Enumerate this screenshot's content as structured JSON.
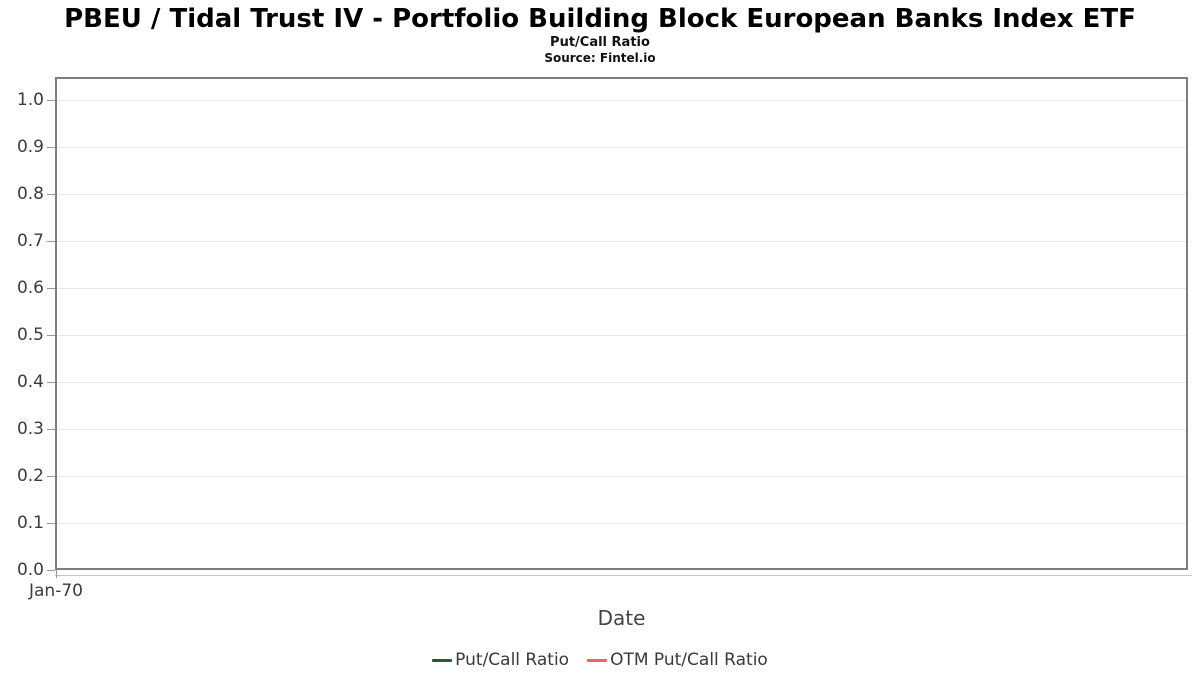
{
  "header": {
    "title": "PBEU / Tidal Trust IV - Portfolio Building Block European Banks Index ETF",
    "subtitle": "Put/Call Ratio",
    "source": "Source: Fintel.io"
  },
  "chart_data": {
    "type": "line",
    "title": "PBEU / Tidal Trust IV - Portfolio Building Block European Banks Index ETF",
    "subtitle": "Put/Call Ratio",
    "source": "Source: Fintel.io",
    "xlabel": "Date",
    "ylabel": "",
    "ylim": [
      0.0,
      1.05
    ],
    "yticks": [
      0.0,
      0.1,
      0.2,
      0.3,
      0.4,
      0.5,
      0.6,
      0.7,
      0.8,
      0.9,
      1.0
    ],
    "ytick_labels": [
      "0.0",
      "0.1",
      "0.2",
      "0.3",
      "0.4",
      "0.5",
      "0.6",
      "0.7",
      "0.8",
      "0.9",
      "1.0"
    ],
    "xticks": [
      "Jan-70"
    ],
    "grid": true,
    "legend_position": "bottom",
    "series": [
      {
        "name": "Put/Call Ratio",
        "color": "#265b36",
        "x": [],
        "values": []
      },
      {
        "name": "OTM Put/Call Ratio",
        "color": "#f4645c",
        "x": [],
        "values": []
      }
    ],
    "colors": {
      "plot_border": "#7e7e7e",
      "gridline": "#e7e7e7",
      "axis_line": "#c6c6c6",
      "tick": "#9a9a9a",
      "label_text": "#3c3c3c"
    }
  }
}
